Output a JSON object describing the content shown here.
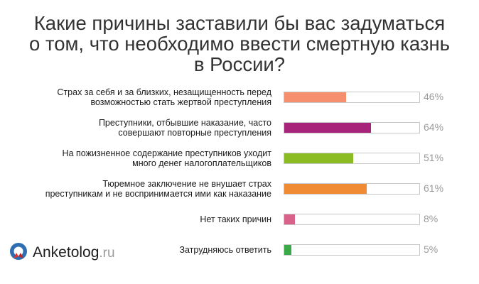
{
  "chart_data": {
    "type": "bar",
    "orientation": "horizontal",
    "title_lines": [
      "Какие причины заставили бы вас задуматься",
      "о том, что необходимо ввести смертную казнь",
      "в России?"
    ],
    "xlim": [
      0,
      100
    ],
    "grid": false,
    "legend": "none",
    "categories": [
      [
        "Страх за себя и за близких, незащищенность перед",
        "возможностью стать жертвой преступления"
      ],
      [
        "Преступники, отбывшие наказание, часто",
        "совершают повторные преступления"
      ],
      [
        "На пожизненное содержание преступников уходит",
        "много денег налогоплательщиков"
      ],
      [
        "Тюремное заключение не внушает страх",
        "преступникам и не воспринимается ими как наказание"
      ],
      [
        "Нет таких причин"
      ],
      [
        "Затрудняюсь ответить"
      ]
    ],
    "values": [
      46,
      64,
      51,
      61,
      8,
      5
    ],
    "value_labels": [
      "46%",
      "64%",
      "51%",
      "61%",
      "8%",
      "5%"
    ],
    "colors": [
      "#f58f6e",
      "#a8237a",
      "#8cbc23",
      "#f08a33",
      "#d8628a",
      "#3aaa48"
    ]
  },
  "logo": {
    "brand": "Anketolog",
    "tld": ".ru",
    "icon": "anketolog-logo-icon"
  }
}
